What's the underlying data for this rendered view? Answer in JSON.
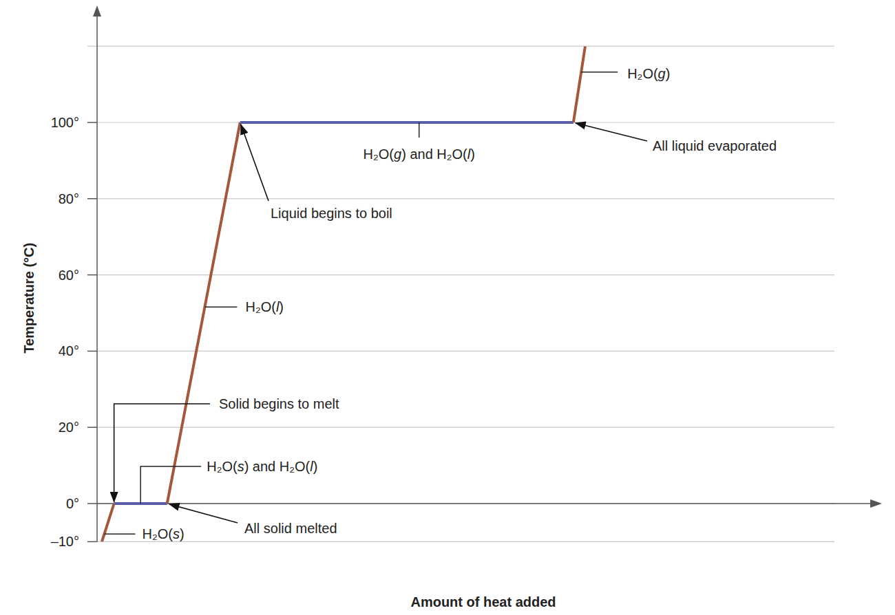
{
  "chart_data": {
    "type": "line",
    "x_label": "Amount of heat added",
    "y_label": "Temperature (°C)",
    "xlim": [
      0,
      100
    ],
    "ylim": [
      -10,
      120
    ],
    "yticks": [
      {
        "value": -10,
        "label": "–10°"
      },
      {
        "value": 0,
        "label": "0°"
      },
      {
        "value": 20,
        "label": "20°"
      },
      {
        "value": 40,
        "label": "40°"
      },
      {
        "value": 60,
        "label": "60°"
      },
      {
        "value": 80,
        "label": "80°"
      },
      {
        "value": 100,
        "label": "100°"
      }
    ],
    "grid": true,
    "tick_labels": "y",
    "series": [
      {
        "name": "H₂O(s)",
        "color": "#a5573a",
        "x": [
          0.65,
          2.3
        ],
        "values": [
          -10,
          0
        ]
      },
      {
        "name": "H₂O(s) and H₂O(l)",
        "color": "#5a5ea9",
        "x": [
          2.3,
          9.5
        ],
        "values": [
          0,
          0
        ]
      },
      {
        "name": "H₂O(l)",
        "color": "#a5573a",
        "x": [
          9.5,
          19.4
        ],
        "values": [
          0,
          100
        ]
      },
      {
        "name": "H₂O(g) and H₂O(l)",
        "color": "#5a5ea9",
        "x": [
          19.4,
          64.6
        ],
        "values": [
          100,
          100
        ]
      },
      {
        "name": "H₂O(g)",
        "color": "#a5573a",
        "x": [
          64.6,
          66.2
        ],
        "values": [
          100,
          120
        ]
      }
    ],
    "annotations": [
      {
        "text": "Solid begins to melt",
        "x": 2.3,
        "y": 0
      },
      {
        "text": "All solid melted",
        "x": 9.5,
        "y": 0
      },
      {
        "text": "Liquid begins to boil",
        "x": 19.4,
        "y": 100
      },
      {
        "text": "All liquid evaporated",
        "x": 64.6,
        "y": 100
      }
    ]
  }
}
